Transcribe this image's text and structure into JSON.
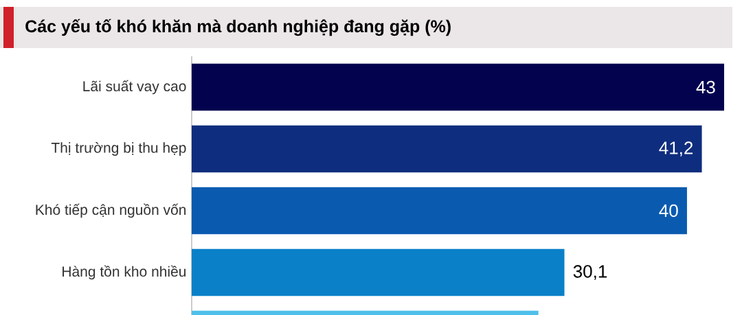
{
  "chart_data": {
    "type": "bar",
    "orientation": "horizontal",
    "title": "Các yếu tố khó khăn mà doanh nghiệp đang gặp (%)",
    "categories": [
      "Lãi suất vay cao",
      "Thị trường bị thu hẹp",
      "Khó tiếp cận nguồn vốn",
      "Hàng tồn kho nhiều",
      null
    ],
    "values": [
      43,
      41.2,
      40,
      30.1,
      28
    ],
    "colors": [
      "#02024f",
      "#0f2d7e",
      "#0a5bb0",
      "#0a80c8",
      "#4fc0ea"
    ],
    "value_labels": [
      "43",
      "41,2",
      "40",
      "30,1",
      null
    ]
  }
}
